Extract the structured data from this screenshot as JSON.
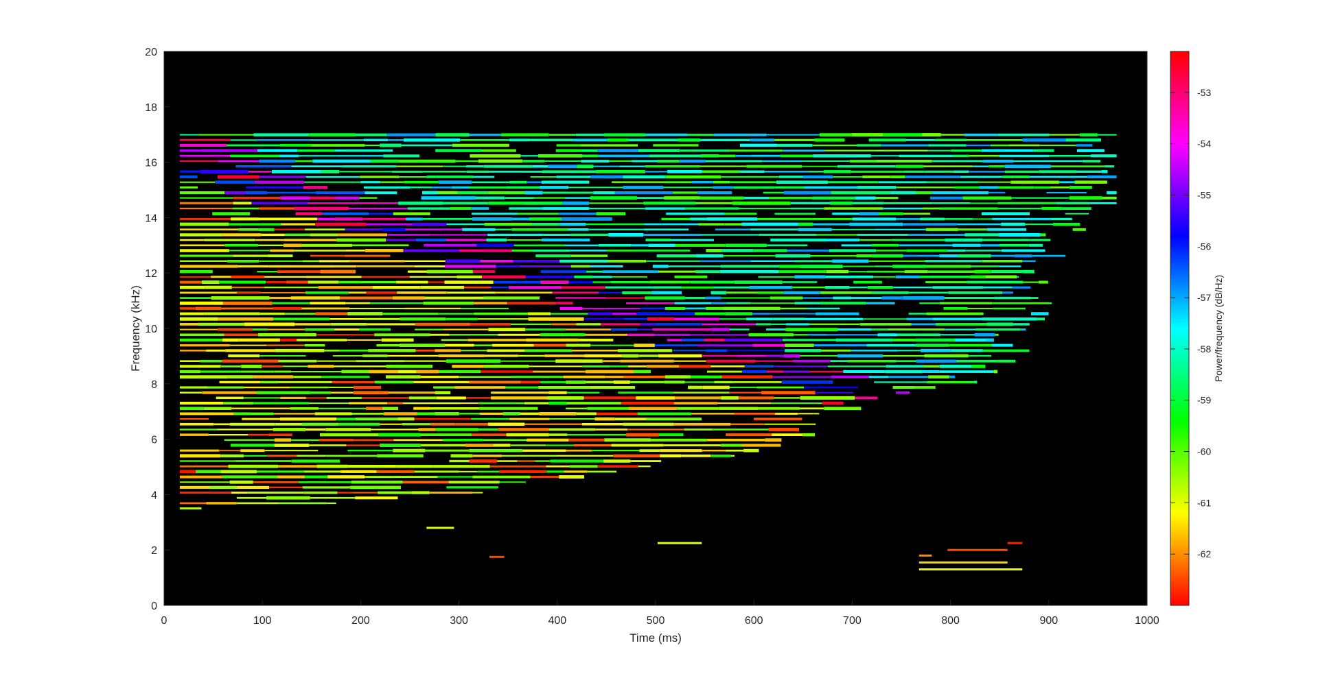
{
  "chart_data": {
    "type": "heatmap",
    "title": "",
    "xlabel": "Time (ms)",
    "ylabel": "Frequency (kHz)",
    "xlim": [
      0,
      1000
    ],
    "ylim": [
      0,
      20
    ],
    "xticks": [
      "0",
      "100",
      "200",
      "300",
      "400",
      "500",
      "600",
      "700",
      "800",
      "900",
      "1000"
    ],
    "yticks": [
      "0",
      "2",
      "4",
      "6",
      "8",
      "10",
      "12",
      "14",
      "16",
      "18",
      "20"
    ],
    "background_color": "#000000",
    "grid": false,
    "colorbar": {
      "label": "Power/frequency (dB/Hz)",
      "placement": "right",
      "range": [
        -63.0,
        -52.2
      ],
      "ticks": [
        "-53",
        "-54",
        "-55",
        "-56",
        "-57",
        "-58",
        "-59",
        "-60",
        "-61",
        "-62"
      ],
      "colormap": "hsv (red at both ends)"
    },
    "band": {
      "freq_step_khz": 0.19,
      "freq_min_khz": 3.5,
      "freq_max_khz": 17.0,
      "time_start_ms": 16,
      "time_end_max_ms": 969
    },
    "low_frequency_fragments": [
      {
        "t": [
          267,
          295
        ],
        "f": 2.8,
        "db": -61.0
      },
      {
        "t": [
          331,
          346
        ],
        "f": 1.75,
        "db": -62.5
      },
      {
        "t": [
          502,
          547
        ],
        "f": 2.25,
        "db": -61.0
      },
      {
        "t": [
          768,
          781
        ],
        "f": 1.8,
        "db": -62.0
      },
      {
        "t": [
          768,
          858
        ],
        "f": 1.55,
        "db": -61.5
      },
      {
        "t": [
          768,
          873
        ],
        "f": 1.3,
        "db": -61.0
      },
      {
        "t": [
          797,
          858
        ],
        "f": 2.0,
        "db": -62.5
      },
      {
        "t": [
          858,
          873
        ],
        "f": 2.25,
        "db": -62.8
      }
    ]
  }
}
